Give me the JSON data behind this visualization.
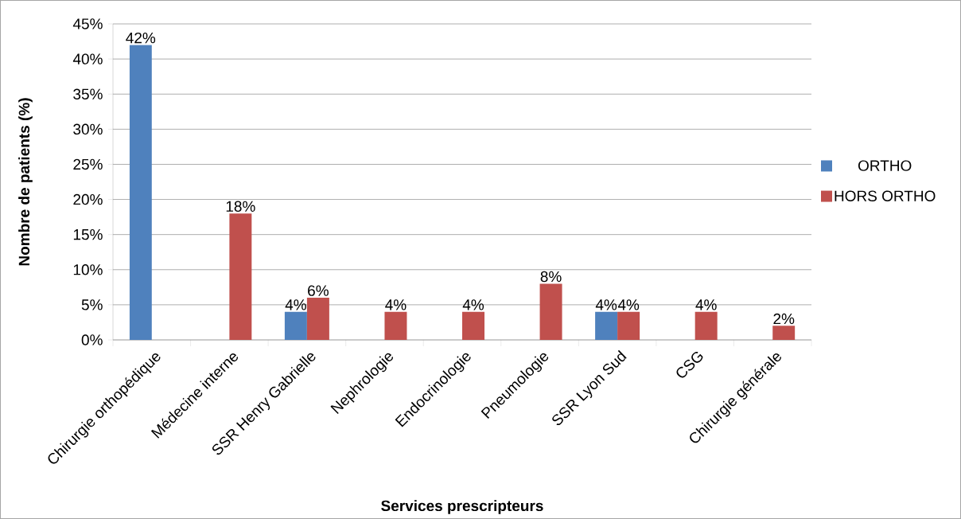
{
  "chart_data": {
    "type": "bar",
    "xlabel": "Services prescripteurs",
    "ylabel": "Nombre de patients (%)",
    "categories": [
      "Chirurgie orthopédique",
      "Médecine interne",
      "SSR Henry Gabrielle",
      "Nephrologie",
      "Endocrinologie",
      "Pneumologie",
      "SSR Lyon Sud",
      "CSG",
      "Chirurgie générale"
    ],
    "series": [
      {
        "name": "ORTHO",
        "color": "#4f81bd",
        "values": [
          42,
          null,
          4,
          null,
          null,
          null,
          4,
          null,
          null
        ],
        "value_labels": [
          "42%",
          null,
          "4%",
          null,
          null,
          null,
          "4%",
          null,
          null
        ]
      },
      {
        "name": "HORS ORTHO",
        "color": "#c0504d",
        "values": [
          null,
          18,
          6,
          4,
          4,
          8,
          4,
          4,
          2
        ],
        "value_labels": [
          null,
          "18%",
          "6%",
          "4%",
          "4%",
          "8%",
          "4%",
          "4%",
          "2%"
        ]
      }
    ],
    "ylim": [
      0,
      45
    ],
    "yticks": [
      {
        "value": 0,
        "label": "0%"
      },
      {
        "value": 5,
        "label": "5%"
      },
      {
        "value": 10,
        "label": "10%"
      },
      {
        "value": 15,
        "label": "15%"
      },
      {
        "value": 20,
        "label": "20%"
      },
      {
        "value": 25,
        "label": "25%"
      },
      {
        "value": 30,
        "label": "30%"
      },
      {
        "value": 35,
        "label": "35%"
      },
      {
        "value": 40,
        "label": "40%"
      },
      {
        "value": 45,
        "label": "45%"
      }
    ],
    "grid": "y",
    "legend": "right"
  }
}
